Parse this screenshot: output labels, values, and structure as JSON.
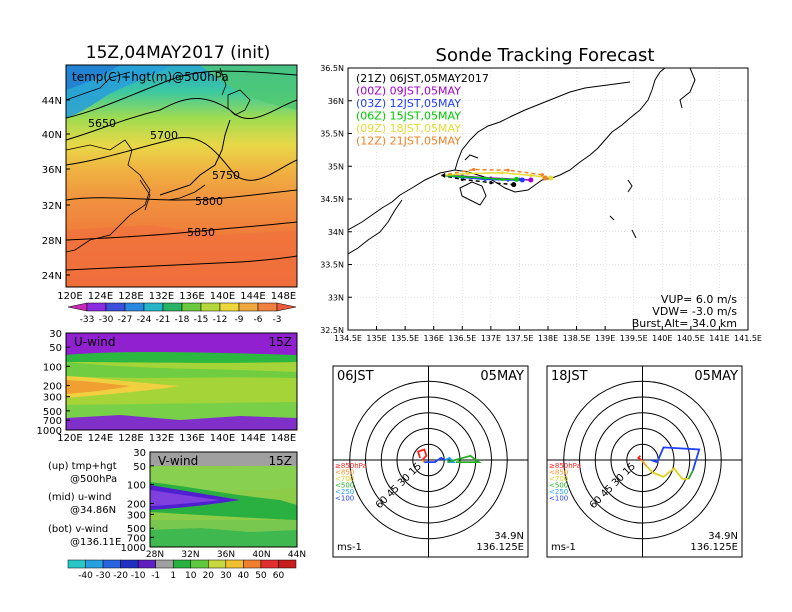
{
  "left": {
    "main_title": "15Z,04MAY2017 (init)",
    "map": {
      "label": "temp(C)+hgt(m)@500hPa",
      "lat_ticks": [
        "44N",
        "40N",
        "36N",
        "32N",
        "28N",
        "24N"
      ],
      "lon_ticks": [
        "120E",
        "124E",
        "128E",
        "132E",
        "136E",
        "140E",
        "144E",
        "148E"
      ],
      "contour_labels": [
        "5650",
        "5700",
        "5750",
        "5800",
        "5850"
      ]
    },
    "temp_colorbar": [
      "-33",
      "-30",
      "-27",
      "-24",
      "-21",
      "-18",
      "-15",
      "-12",
      "-9",
      "-6",
      "-3"
    ],
    "uwind": {
      "label": "U-wind",
      "time": "15Z",
      "p_ticks": [
        "30",
        "50",
        "100",
        "200",
        "300",
        "500",
        "700",
        "1000"
      ],
      "lon_ticks": [
        "120E",
        "124E",
        "128E",
        "132E",
        "136E",
        "140E",
        "144E",
        "148E"
      ]
    },
    "vwind": {
      "label": "V-wind",
      "time": "15Z",
      "p_ticks": [
        "30",
        "50",
        "100",
        "200",
        "300",
        "500",
        "700",
        "1000"
      ],
      "lat_ticks": [
        "28N",
        "32N",
        "36N",
        "40N",
        "44N"
      ]
    },
    "notes": {
      "up1": "(up) tmp+hgt",
      "up2": "@500hPa",
      "mid1": "(mid) u-wind",
      "mid2": "@34.86N",
      "bot1": "(bot) v-wind",
      "bot2": "@136.11E"
    },
    "wind_colorbar": [
      "-40",
      "-30",
      "-20",
      "-10",
      "-1",
      "1",
      "10",
      "20",
      "30",
      "40",
      "50",
      "60"
    ]
  },
  "right": {
    "title": "Sonde Tracking Forecast",
    "track": {
      "lat_ticks": [
        "36.5N",
        "36N",
        "35.5N",
        "35N",
        "34.5N",
        "34N",
        "33.5N",
        "33N",
        "32.5N"
      ],
      "lon_ticks": [
        "134.5E",
        "135E",
        "135.5E",
        "136E",
        "136.5E",
        "137E",
        "137.5E",
        "138E",
        "138.5E",
        "139E",
        "139.5E",
        "140E",
        "140.5E",
        "141E",
        "141.5E"
      ],
      "legend": [
        {
          "text": "(21Z)  06JST,05MAY2017",
          "color": "#000000"
        },
        {
          "text": "(00Z)  09JST,05MAY",
          "color": "#a000c8"
        },
        {
          "text": "(03Z)  12JST,05MAY",
          "color": "#1e3cff"
        },
        {
          "text": "(06Z)  15JST,05MAY",
          "color": "#00c800"
        },
        {
          "text": "(09Z)  18JST,05MAY",
          "color": "#e6dc32"
        },
        {
          "text": "(12Z)  21JST,05MAY",
          "color": "#f08228"
        }
      ],
      "params": [
        "VUP= 6.0 m/s",
        "VDW= -3.0 m/s",
        "Burst Alt= 34.0 km"
      ]
    },
    "hodo1": {
      "time": "06JST",
      "date": "05MAY",
      "lat": "34.9N",
      "lon": "136.125E",
      "unit": "ms-1"
    },
    "hodo2": {
      "time": "18JST",
      "date": "05MAY",
      "lat": "34.9N",
      "lon": "136.125E",
      "unit": "ms-1"
    },
    "hodo_rings": [
      "15",
      "30",
      "45",
      "60"
    ],
    "hodo_legend": [
      {
        "text": "≥850hPa",
        "color": "#ff2020"
      },
      {
        "text": "<850",
        "color": "#ff9020"
      },
      {
        "text": "<700",
        "color": "#e0d020"
      },
      {
        "text": "<500",
        "color": "#20b020"
      },
      {
        "text": "<250",
        "color": "#20a0ff"
      },
      {
        "text": "<100",
        "color": "#2040ff"
      }
    ]
  },
  "chart_data": [
    {
      "type": "heatmap",
      "title": "15Z,04MAY2017 (init)",
      "label": "temp(C)+hgt(m)@500hPa",
      "xlim": [
        120,
        150
      ],
      "ylim": [
        22,
        48
      ],
      "colorbar_levels": [
        -33,
        -30,
        -27,
        -24,
        -21,
        -18,
        -15,
        -12,
        -9,
        -6,
        -3
      ],
      "contours": [
        {
          "value": 5650,
          "label_at": [
            127,
            43
          ]
        },
        {
          "value": 5700,
          "label_at": [
            132,
            42
          ]
        },
        {
          "value": 5750,
          "label_at": [
            141,
            35
          ]
        },
        {
          "value": 5800,
          "label_at": [
            137,
            32
          ]
        },
        {
          "value": 5850,
          "label_at": [
            137,
            28.5
          ]
        }
      ]
    },
    {
      "type": "line",
      "title": "Sonde Tracking Forecast",
      "xlim": [
        134.5,
        141.5
      ],
      "ylim": [
        32.5,
        36.5
      ],
      "series": [
        {
          "name": "(21Z) 06JST,05MAY2017",
          "x": [
            136.13,
            136.5,
            137.0,
            137.4
          ],
          "y": [
            34.86,
            34.8,
            34.75,
            34.72
          ]
        },
        {
          "name": "(00Z) 09JST,05MAY",
          "x": [
            136.13,
            136.5,
            137.0,
            137.5,
            137.7
          ],
          "y": [
            34.86,
            34.85,
            34.82,
            34.8,
            34.79
          ]
        },
        {
          "name": "(03Z) 12JST,05MAY",
          "x": [
            136.13,
            136.5,
            136.9,
            137.3,
            137.55
          ],
          "y": [
            34.86,
            34.83,
            34.8,
            34.79,
            34.79
          ]
        },
        {
          "name": "(06Z) 15JST,05MAY",
          "x": [
            136.13,
            136.5,
            136.9,
            137.2,
            137.45
          ],
          "y": [
            34.86,
            34.84,
            34.82,
            34.8,
            34.8
          ]
        },
        {
          "name": "(09Z) 18JST,05MAY",
          "x": [
            136.13,
            136.6,
            137.2,
            137.7,
            138.05
          ],
          "y": [
            34.86,
            34.89,
            34.9,
            34.86,
            34.82
          ]
        },
        {
          "name": "(12Z) 21JST,05MAY",
          "x": [
            136.13,
            136.7,
            137.3,
            137.9,
            137.95
          ],
          "y": [
            34.86,
            34.95,
            34.94,
            34.87,
            34.82
          ]
        }
      ],
      "params": {
        "VUP": 6.0,
        "VDW": -3.0,
        "Burst_Alt_km": 34.0
      }
    }
  ]
}
